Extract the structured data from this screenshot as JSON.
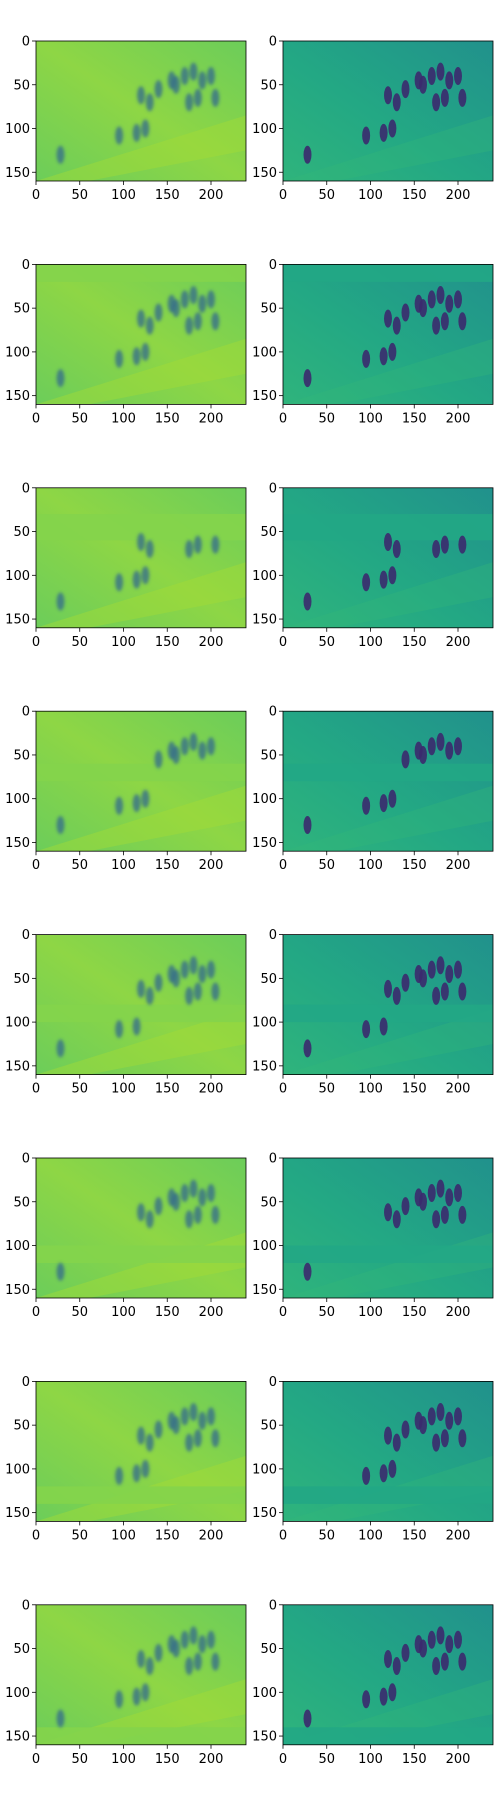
{
  "chart_data": {
    "type": "heatmap",
    "layout": "8 rows x 2 columns grid of image panels",
    "colormap": "viridis",
    "x_ticks": [
      0,
      50,
      100,
      150,
      200
    ],
    "y_ticks": [
      0,
      50,
      100,
      150
    ],
    "xlim": [
      0,
      240
    ],
    "ylim": [
      160,
      0
    ],
    "image_width": 240,
    "image_height": 160,
    "grid": false,
    "left_column": {
      "background_color": "#84d44b",
      "description": "blurred reconstruction of a crowd of people walking on a slope"
    },
    "right_column": {
      "background_color": "#22a785",
      "description": "reconstruction with a horizontal occluded band of people; band position moves down per row"
    },
    "panels": [
      {
        "row": 1,
        "band_rows": [
          0,
          0
        ]
      },
      {
        "row": 2,
        "band_rows": [
          0,
          20
        ]
      },
      {
        "row": 3,
        "band_rows": [
          30,
          60
        ]
      },
      {
        "row": 4,
        "band_rows": [
          60,
          80
        ]
      },
      {
        "row": 5,
        "band_rows": [
          80,
          100
        ]
      },
      {
        "row": 6,
        "band_rows": [
          100,
          120
        ]
      },
      {
        "row": 7,
        "band_rows": [
          120,
          140
        ]
      },
      {
        "row": 8,
        "band_rows": [
          140,
          160
        ]
      }
    ]
  }
}
